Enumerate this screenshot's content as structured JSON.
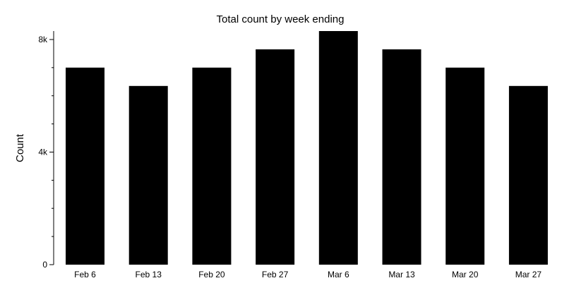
{
  "chart_data": {
    "type": "bar",
    "title": "Total count by week ending",
    "xlabel": "",
    "ylabel": "Count",
    "categories": [
      "Feb 6",
      "Feb 13",
      "Feb 20",
      "Feb 27",
      "Mar 6",
      "Mar 13",
      "Mar 20",
      "Mar 27"
    ],
    "values": [
      7000,
      6350,
      7000,
      7650,
      8300,
      7650,
      7000,
      6350
    ],
    "ylim": [
      0,
      8300
    ],
    "y_major_ticks": [
      0,
      4000,
      8000
    ],
    "y_major_tick_labels": [
      "0",
      "4k",
      "8k"
    ],
    "y_minor_ticks": [
      1000,
      2000,
      3000,
      5000,
      6000,
      7000
    ],
    "grid": false,
    "legend": "none",
    "bar_color": "#000000"
  }
}
